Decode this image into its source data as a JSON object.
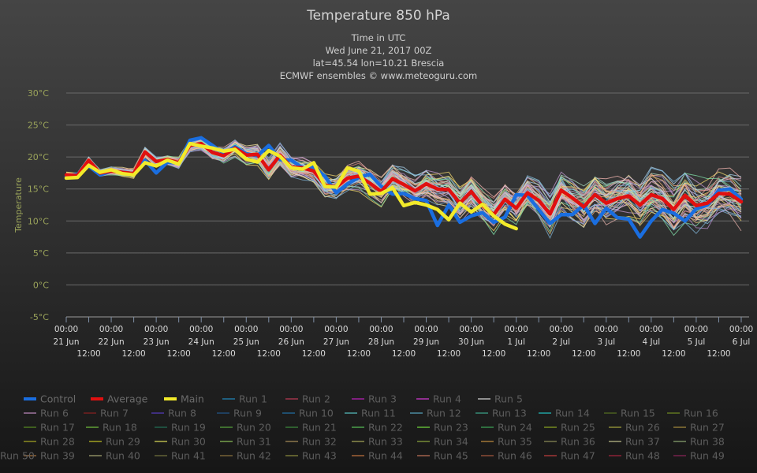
{
  "chart_data": {
    "type": "line",
    "title": "Temperature 850 hPa",
    "subtitle_lines": [
      "Time in UTC",
      "Wed June 21, 2017 00Z",
      "lat=45.54 lon=10.21 Brescia",
      "ECMWF ensembles © www.meteoguru.com"
    ],
    "ylabel": "Temperature",
    "ylim": [
      -5,
      30
    ],
    "yticks": [
      "-5°C",
      "0°C",
      "5°C",
      "10°C",
      "15°C",
      "20°C",
      "25°C",
      "30°C"
    ],
    "ytick_values": [
      -5,
      0,
      5,
      10,
      15,
      20,
      25,
      30
    ],
    "xlim_hours": [
      0,
      360
    ],
    "x_tick_hours": [
      0,
      12,
      24,
      36,
      48,
      60,
      72,
      84,
      96,
      108,
      120,
      132,
      144,
      156,
      168,
      180,
      192,
      204,
      216,
      228,
      240,
      252,
      264,
      276,
      288,
      300,
      312,
      324,
      336,
      348,
      360
    ],
    "x_day_labels": [
      {
        "time": "00:00",
        "date": "21 Jun"
      },
      {
        "time": "00:00",
        "date": "22 Jun"
      },
      {
        "time": "00:00",
        "date": "23 Jun"
      },
      {
        "time": "00:00",
        "date": "24 Jun"
      },
      {
        "time": "00:00",
        "date": "25 Jun"
      },
      {
        "time": "00:00",
        "date": "26 Jun"
      },
      {
        "time": "00:00",
        "date": "27 Jun"
      },
      {
        "time": "00:00",
        "date": "28 Jun"
      },
      {
        "time": "00:00",
        "date": "29 Jun"
      },
      {
        "time": "00:00",
        "date": "30 Jun"
      },
      {
        "time": "00:00",
        "date": "1 Jul"
      },
      {
        "time": "00:00",
        "date": "2 Jul"
      },
      {
        "time": "00:00",
        "date": "3 Jul"
      },
      {
        "time": "00:00",
        "date": "4 Jul"
      },
      {
        "time": "00:00",
        "date": "5 Jul"
      },
      {
        "time": "00:00",
        "date": "6 Jul"
      }
    ],
    "x_half_label": "12:00",
    "grid": true,
    "legend_position": "bottom",
    "series": [
      {
        "name": "Control",
        "color": "#1a6ee0",
        "width": 4.5,
        "x": [
          0,
          6,
          12,
          18,
          24,
          30,
          36,
          42,
          48,
          54,
          60,
          66,
          72,
          78,
          84,
          90,
          96,
          102,
          108,
          114,
          120,
          126,
          132,
          138,
          144,
          150,
          156,
          162,
          168,
          174,
          180,
          186,
          192,
          198,
          204,
          210,
          216,
          222,
          228,
          234,
          240,
          246,
          252,
          258,
          264,
          270,
          276,
          282,
          288,
          294,
          300,
          306,
          312,
          318,
          324,
          330,
          336,
          342,
          348,
          354,
          360
        ],
        "y": [
          17,
          17.3,
          18.6,
          17.2,
          17.8,
          17.6,
          17.4,
          19.5,
          17.5,
          19.2,
          19,
          22.6,
          23,
          21.8,
          20.6,
          21.6,
          20.5,
          20.2,
          21.8,
          19.6,
          19.5,
          18.3,
          18.4,
          17,
          14.4,
          15.8,
          16.8,
          17.3,
          15.4,
          14.2,
          14.3,
          13.5,
          13.2,
          9.3,
          12.5,
          9.8,
          10.8,
          11.3,
          9.8,
          10.6,
          14.1,
          14,
          11.8,
          9.6,
          11,
          11,
          12.5,
          9.6,
          12,
          10.5,
          10.3,
          7.5,
          10,
          11.8,
          11.2,
          10,
          11.9,
          12.5,
          14.8,
          15,
          13.4
        ]
      },
      {
        "name": "Average",
        "color": "#e01010",
        "width": 4.5,
        "x": [
          0,
          6,
          12,
          18,
          24,
          30,
          36,
          42,
          48,
          54,
          60,
          66,
          72,
          78,
          84,
          90,
          96,
          102,
          108,
          114,
          120,
          126,
          132,
          138,
          144,
          150,
          156,
          162,
          168,
          174,
          180,
          186,
          192,
          198,
          204,
          210,
          216,
          222,
          228,
          234,
          240,
          246,
          252,
          258,
          264,
          270,
          276,
          282,
          288,
          294,
          300,
          306,
          312,
          318,
          324,
          330,
          336,
          342,
          348,
          354,
          360
        ],
        "y": [
          17.2,
          17.1,
          19.5,
          17.5,
          17.8,
          17.6,
          17.4,
          20.8,
          19.3,
          19.6,
          19.1,
          21.8,
          22.1,
          20.7,
          20.2,
          21.4,
          20.3,
          20.4,
          18,
          20.3,
          18.4,
          18.3,
          17.8,
          15.6,
          15.3,
          16.7,
          17,
          15.9,
          14.6,
          16.6,
          15.7,
          14.7,
          15.8,
          15,
          14.9,
          12.8,
          14.6,
          12.4,
          11,
          13.4,
          12,
          14.4,
          13.2,
          11.1,
          14.8,
          13.6,
          12.2,
          14.1,
          12.8,
          13.5,
          13.9,
          12.5,
          14.1,
          13.5,
          11.8,
          14,
          12.4,
          12.8,
          14.3,
          14.2,
          13
        ]
      },
      {
        "name": "Main",
        "color": "#f2ea2a",
        "width": 4.5,
        "x": [
          0,
          6,
          12,
          18,
          24,
          30,
          36,
          42,
          48,
          54,
          60,
          66,
          72,
          78,
          84,
          90,
          96,
          102,
          108,
          114,
          120,
          126,
          132,
          138,
          144,
          150,
          156,
          162,
          168,
          174,
          180,
          186,
          192,
          198,
          204,
          210,
          216,
          222,
          228,
          234,
          240
        ],
        "y": [
          16.7,
          16.8,
          18.7,
          17.6,
          18,
          17.4,
          17.2,
          19.1,
          18.6,
          19.5,
          18.9,
          22.1,
          21.7,
          21.4,
          20.9,
          21.2,
          19.7,
          19.2,
          21,
          20.1,
          18.3,
          18.1,
          19.1,
          15.4,
          15.3,
          18.3,
          17.8,
          14.2,
          14.3,
          15.2,
          12.4,
          12.9,
          12.5,
          11.8,
          10.2,
          12.8,
          11.4,
          12.6,
          10.8,
          9.5,
          8.8
        ]
      }
    ],
    "ensemble_runs": [
      {
        "name": "Run 1",
        "color": "#1f5f7f"
      },
      {
        "name": "Run 2",
        "color": "#7f2f3f"
      },
      {
        "name": "Run 3",
        "color": "#7f1f7f"
      },
      {
        "name": "Run 4",
        "color": "#8f2f8f"
      },
      {
        "name": "Run 5",
        "color": "#8f8f8f"
      },
      {
        "name": "Run 6",
        "color": "#7f5f7f"
      },
      {
        "name": "Run 7",
        "color": "#5f1f1f"
      },
      {
        "name": "Run 8",
        "color": "#3f2f7f"
      },
      {
        "name": "Run 9",
        "color": "#1f3f5f"
      },
      {
        "name": "Run 10",
        "color": "#1f4f6f"
      },
      {
        "name": "Run 11",
        "color": "#3f7f7f"
      },
      {
        "name": "Run 12",
        "color": "#3f6f7f"
      },
      {
        "name": "Run 13",
        "color": "#2f6f5f"
      },
      {
        "name": "Run 14",
        "color": "#1f7f7f"
      },
      {
        "name": "Run 15",
        "color": "#3f4f1f"
      },
      {
        "name": "Run 16",
        "color": "#4f5f1f"
      },
      {
        "name": "Run 17",
        "color": "#3f5f1f"
      },
      {
        "name": "Run 18",
        "color": "#4f7f2f"
      },
      {
        "name": "Run 19",
        "color": "#1f4f3f"
      },
      {
        "name": "Run 20",
        "color": "#3f6f2f"
      },
      {
        "name": "Run 21",
        "color": "#2f5f2f"
      },
      {
        "name": "Run 22",
        "color": "#3f7f3f"
      },
      {
        "name": "Run 23",
        "color": "#4f8f2f"
      },
      {
        "name": "Run 24",
        "color": "#2f6f3f"
      },
      {
        "name": "Run 25",
        "color": "#5f6f1f"
      },
      {
        "name": "Run 26",
        "color": "#6f6f2f"
      },
      {
        "name": "Run 27",
        "color": "#6f5f2f"
      },
      {
        "name": "Run 28",
        "color": "#6f6f1f"
      },
      {
        "name": "Run 29",
        "color": "#7f7f1f"
      },
      {
        "name": "Run 30",
        "color": "#8f8f3f"
      },
      {
        "name": "Run 31",
        "color": "#5f7f3f"
      },
      {
        "name": "Run 32",
        "color": "#6f5f3f"
      },
      {
        "name": "Run 33",
        "color": "#6f6f3f"
      },
      {
        "name": "Run 34",
        "color": "#5f6f2f"
      },
      {
        "name": "Run 35",
        "color": "#7f5f2f"
      },
      {
        "name": "Run 36",
        "color": "#5f5f3f"
      },
      {
        "name": "Run 37",
        "color": "#7f7f5f"
      },
      {
        "name": "Run 38",
        "color": "#5f6f4f"
      },
      {
        "name": "Run 39",
        "color": "#6f4f2f"
      },
      {
        "name": "Run 40",
        "color": "#6f6f4f"
      },
      {
        "name": "Run 41",
        "color": "#4f4f2f"
      },
      {
        "name": "Run 42",
        "color": "#5f4f2f"
      },
      {
        "name": "Run 43",
        "color": "#5f5f2f"
      },
      {
        "name": "Run 44",
        "color": "#7f4f2f"
      },
      {
        "name": "Run 45",
        "color": "#7f4f3f"
      },
      {
        "name": "Run 46",
        "color": "#6f3f2f"
      },
      {
        "name": "Run 47",
        "color": "#7f2f2f"
      },
      {
        "name": "Run 48",
        "color": "#6f1f2f"
      },
      {
        "name": "Run 49",
        "color": "#5f1f3f"
      },
      {
        "name": "Run 50",
        "color": "#1f5f8f"
      }
    ]
  }
}
